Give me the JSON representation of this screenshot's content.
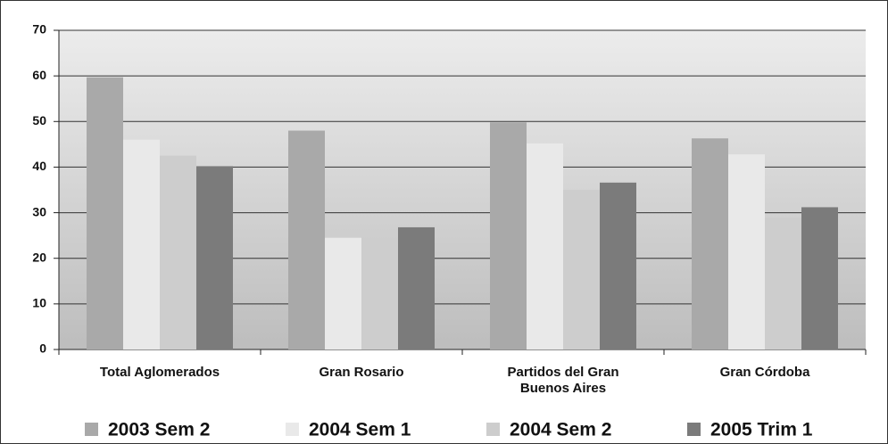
{
  "chart_data": {
    "type": "bar",
    "categories": [
      "Total Aglomerados",
      "Gran Rosario",
      "Partidos del Gran Buenos Aires",
      "Gran Córdoba"
    ],
    "series": [
      {
        "name": "2003 Sem 2",
        "color": "#a9a9a9",
        "values": [
          59.7,
          48,
          49.8,
          46.3
        ]
      },
      {
        "name": "2004 Sem 1",
        "color": "#e9e9e9",
        "values": [
          46,
          24.5,
          45.2,
          42.8
        ]
      },
      {
        "name": "2004 Sem 2",
        "color": "#cdcdcd",
        "values": [
          42.5,
          24.5,
          35,
          28.9
        ]
      },
      {
        "name": "2005 Trim 1",
        "color": "#7b7b7b",
        "values": [
          40.2,
          26.8,
          36.6,
          31.2
        ]
      }
    ],
    "ylim": [
      0,
      70
    ],
    "yticks": [
      0,
      10,
      20,
      30,
      40,
      50,
      60,
      70
    ],
    "grid": true,
    "legend": "bottom"
  }
}
